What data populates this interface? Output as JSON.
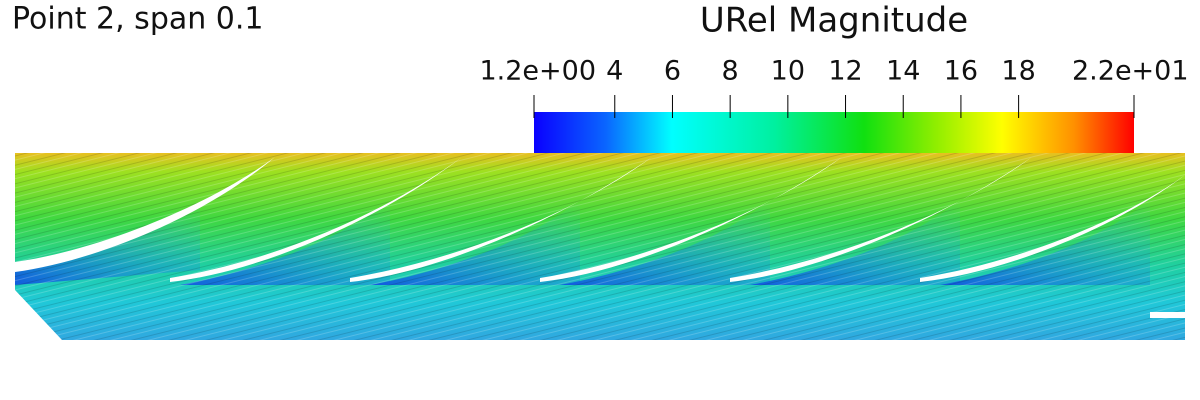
{
  "title": "Point 2, span 0.1",
  "colorbar": {
    "title": "URel Magnitude",
    "range": [
      1.2,
      22
    ],
    "ticks": [
      {
        "value": 1.2,
        "label": "1.2e+00"
      },
      4,
      6,
      8,
      10,
      12,
      14,
      16,
      18,
      {
        "value": 22,
        "label": "2.2e+01"
      }
    ]
  }
}
